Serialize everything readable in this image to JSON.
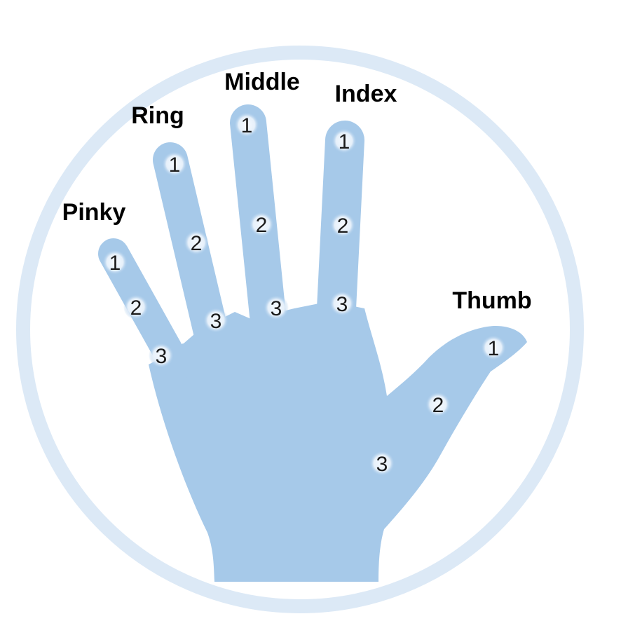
{
  "colors": {
    "hand": "#a6c9e9",
    "ring": "#dce9f6",
    "dot": "#eef5fc",
    "label": "#000000",
    "number": "#1b1b1b"
  },
  "fingers": [
    {
      "id": "pinky",
      "label": "Pinky",
      "segments": [
        "1",
        "2",
        "3"
      ]
    },
    {
      "id": "ring",
      "label": "Ring",
      "segments": [
        "1",
        "2",
        "3"
      ]
    },
    {
      "id": "middle",
      "label": "Middle",
      "segments": [
        "1",
        "2",
        "3"
      ]
    },
    {
      "id": "index",
      "label": "Index",
      "segments": [
        "1",
        "2",
        "3"
      ]
    },
    {
      "id": "thumb",
      "label": "Thumb",
      "segments": [
        "1",
        "2",
        "3"
      ]
    }
  ]
}
